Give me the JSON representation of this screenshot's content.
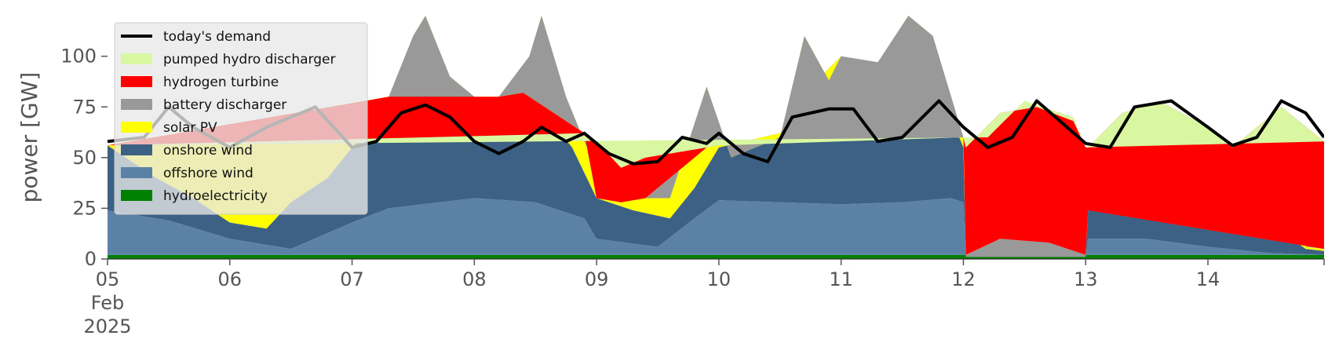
{
  "chart_data": {
    "type": "area",
    "ylabel": "power [GW]",
    "xlabel": "",
    "ylim": [
      0,
      120
    ],
    "xlim": [
      0,
      9.95
    ],
    "grid": false,
    "legend_placement": "top-left",
    "x_ticks": [
      {
        "x": 0,
        "lines": [
          "05",
          "Feb",
          "2025"
        ]
      },
      {
        "x": 1,
        "lines": [
          "06"
        ]
      },
      {
        "x": 2,
        "lines": [
          "07"
        ]
      },
      {
        "x": 3,
        "lines": [
          "08"
        ]
      },
      {
        "x": 4,
        "lines": [
          "09"
        ]
      },
      {
        "x": 5,
        "lines": [
          "10"
        ]
      },
      {
        "x": 6,
        "lines": [
          "11"
        ]
      },
      {
        "x": 7,
        "lines": [
          "12"
        ]
      },
      {
        "x": 8,
        "lines": [
          "13"
        ]
      },
      {
        "x": 9,
        "lines": [
          "14"
        ]
      }
    ],
    "y_ticks": [
      0,
      25,
      50,
      75,
      100
    ],
    "series": [
      {
        "name": "hydroelectricity",
        "color": "#008000",
        "points": [
          [
            0,
            2
          ],
          [
            5,
            2
          ],
          [
            9.95,
            2
          ]
        ]
      },
      {
        "name": "offshore wind",
        "color": "#5b82a6",
        "points": [
          [
            0,
            24
          ],
          [
            0.5,
            19
          ],
          [
            1,
            10
          ],
          [
            1.5,
            5
          ],
          [
            2,
            18
          ],
          [
            2.3,
            25
          ],
          [
            3,
            30
          ],
          [
            3.5,
            28
          ],
          [
            3.9,
            20
          ],
          [
            4,
            10
          ],
          [
            4.5,
            6
          ],
          [
            4.8,
            20
          ],
          [
            5,
            29
          ],
          [
            5.5,
            28
          ],
          [
            6,
            27
          ],
          [
            6.5,
            28
          ],
          [
            6.9,
            30
          ],
          [
            7,
            28
          ],
          [
            7.02,
            1
          ],
          [
            7.5,
            1
          ],
          [
            8,
            1
          ],
          [
            8.02,
            10
          ],
          [
            8.5,
            10
          ],
          [
            9,
            6
          ],
          [
            9.5,
            3
          ],
          [
            9.95,
            2
          ]
        ]
      },
      {
        "name": "onshore wind",
        "color": "#3c6184",
        "points": [
          [
            0,
            56
          ],
          [
            0.4,
            40
          ],
          [
            0.7,
            30
          ],
          [
            1,
            18
          ],
          [
            1.3,
            15
          ],
          [
            1.5,
            28
          ],
          [
            1.8,
            40
          ],
          [
            2,
            55
          ],
          [
            2.3,
            80
          ],
          [
            2.6,
            82
          ],
          [
            2.8,
            83
          ],
          [
            3,
            80
          ],
          [
            3.3,
            75
          ],
          [
            3.6,
            70
          ],
          [
            3.8,
            55
          ],
          [
            4,
            30
          ],
          [
            4.3,
            24
          ],
          [
            4.6,
            20
          ],
          [
            4.8,
            35
          ],
          [
            5,
            55
          ],
          [
            5.5,
            62
          ],
          [
            5.8,
            88
          ],
          [
            6,
            100
          ],
          [
            6.3,
            97
          ],
          [
            6.6,
            90
          ],
          [
            6.9,
            70
          ],
          [
            7,
            55
          ],
          [
            7.02,
            1
          ],
          [
            7.5,
            1
          ],
          [
            8,
            1
          ],
          [
            8.02,
            24
          ],
          [
            8.5,
            30
          ],
          [
            9,
            37
          ],
          [
            9.5,
            18
          ],
          [
            9.8,
            5
          ],
          [
            9.95,
            4
          ]
        ]
      },
      {
        "name": "solar PV",
        "color": "#ffff00",
        "points": [
          [
            0,
            56
          ],
          [
            2.3,
            80
          ],
          [
            2.5,
            110
          ],
          [
            2.6,
            120
          ],
          [
            2.8,
            90
          ],
          [
            3,
            80
          ],
          [
            3.2,
            80
          ],
          [
            3.45,
            100
          ],
          [
            3.55,
            120
          ],
          [
            3.75,
            80
          ],
          [
            3.9,
            58
          ],
          [
            4,
            45
          ],
          [
            4.3,
            30
          ],
          [
            4.6,
            30
          ],
          [
            4.9,
            85
          ],
          [
            5.1,
            50
          ],
          [
            5.5,
            60
          ],
          [
            5.7,
            110
          ],
          [
            5.9,
            88
          ],
          [
            6,
            100
          ],
          [
            6.3,
            97
          ],
          [
            6.55,
            120
          ],
          [
            6.75,
            110
          ],
          [
            7,
            60
          ],
          [
            7.02,
            1
          ],
          [
            7.5,
            1
          ],
          [
            8,
            1
          ],
          [
            8.02,
            24
          ],
          [
            8.5,
            55
          ],
          [
            8.8,
            37
          ],
          [
            9,
            37
          ],
          [
            9.3,
            20
          ],
          [
            9.5,
            48
          ],
          [
            9.7,
            20
          ],
          [
            9.8,
            6
          ],
          [
            9.95,
            5
          ]
        ]
      },
      {
        "name": "battery discharger",
        "color": "#999999",
        "points": [
          [
            0,
            56
          ],
          [
            2.3,
            80
          ],
          [
            3.2,
            80
          ],
          [
            3.4,
            82
          ],
          [
            3.9,
            62
          ],
          [
            4,
            30
          ],
          [
            4.2,
            28
          ],
          [
            4.4,
            30
          ],
          [
            4.9,
            55
          ],
          [
            5,
            56
          ],
          [
            7,
            60
          ],
          [
            7.02,
            2
          ],
          [
            7.3,
            10
          ],
          [
            7.7,
            8
          ],
          [
            8,
            2
          ],
          [
            8.02,
            24
          ],
          [
            9.95,
            5
          ]
        ]
      },
      {
        "name": "hydrogen turbine",
        "color": "#ff0000",
        "points": [
          [
            0,
            56
          ],
          [
            3.9,
            62
          ],
          [
            4,
            58
          ],
          [
            4.2,
            45
          ],
          [
            4.4,
            50
          ],
          [
            4.9,
            55
          ],
          [
            5,
            56
          ],
          [
            7,
            60
          ],
          [
            7.02,
            55
          ],
          [
            7.3,
            72
          ],
          [
            7.6,
            75
          ],
          [
            7.9,
            68
          ],
          [
            8,
            55
          ],
          [
            8.02,
            55
          ],
          [
            8.3,
            72
          ],
          [
            8.6,
            78
          ],
          [
            9,
            65
          ],
          [
            9.2,
            55
          ],
          [
            9.4,
            65
          ],
          [
            9.6,
            75
          ],
          [
            9.95,
            58
          ]
        ]
      },
      {
        "name": "pumped hydro discharger",
        "color": "#d9f7a1",
        "points": [
          [
            0,
            56
          ],
          [
            7.2,
            60
          ],
          [
            7.5,
            78
          ],
          [
            7.9,
            70
          ],
          [
            8,
            55
          ],
          [
            9.95,
            58
          ]
        ]
      }
    ],
    "demand": {
      "name": "today's demand",
      "color": "#000000",
      "points": [
        [
          0,
          58
        ],
        [
          0.3,
          60
        ],
        [
          0.5,
          75
        ],
        [
          0.7,
          65
        ],
        [
          1,
          55
        ],
        [
          1.3,
          65
        ],
        [
          1.5,
          70
        ],
        [
          1.7,
          75
        ],
        [
          2,
          55
        ],
        [
          2.2,
          58
        ],
        [
          2.4,
          72
        ],
        [
          2.6,
          76
        ],
        [
          2.8,
          70
        ],
        [
          3,
          58
        ],
        [
          3.2,
          52
        ],
        [
          3.4,
          58
        ],
        [
          3.55,
          65
        ],
        [
          3.75,
          58
        ],
        [
          3.9,
          62
        ],
        [
          4.1,
          52
        ],
        [
          4.3,
          47
        ],
        [
          4.5,
          48
        ],
        [
          4.7,
          60
        ],
        [
          4.9,
          57
        ],
        [
          5,
          62
        ],
        [
          5.2,
          52
        ],
        [
          5.4,
          48
        ],
        [
          5.6,
          70
        ],
        [
          5.9,
          74
        ],
        [
          6.1,
          74
        ],
        [
          6.3,
          58
        ],
        [
          6.5,
          60
        ],
        [
          6.8,
          78
        ],
        [
          7,
          65
        ],
        [
          7.2,
          55
        ],
        [
          7.4,
          60
        ],
        [
          7.6,
          78
        ],
        [
          8,
          57
        ],
        [
          8.2,
          55
        ],
        [
          8.4,
          75
        ],
        [
          8.7,
          78
        ],
        [
          9,
          65
        ],
        [
          9.2,
          56
        ],
        [
          9.4,
          60
        ],
        [
          9.6,
          78
        ],
        [
          9.8,
          72
        ],
        [
          9.95,
          60
        ]
      ]
    }
  }
}
